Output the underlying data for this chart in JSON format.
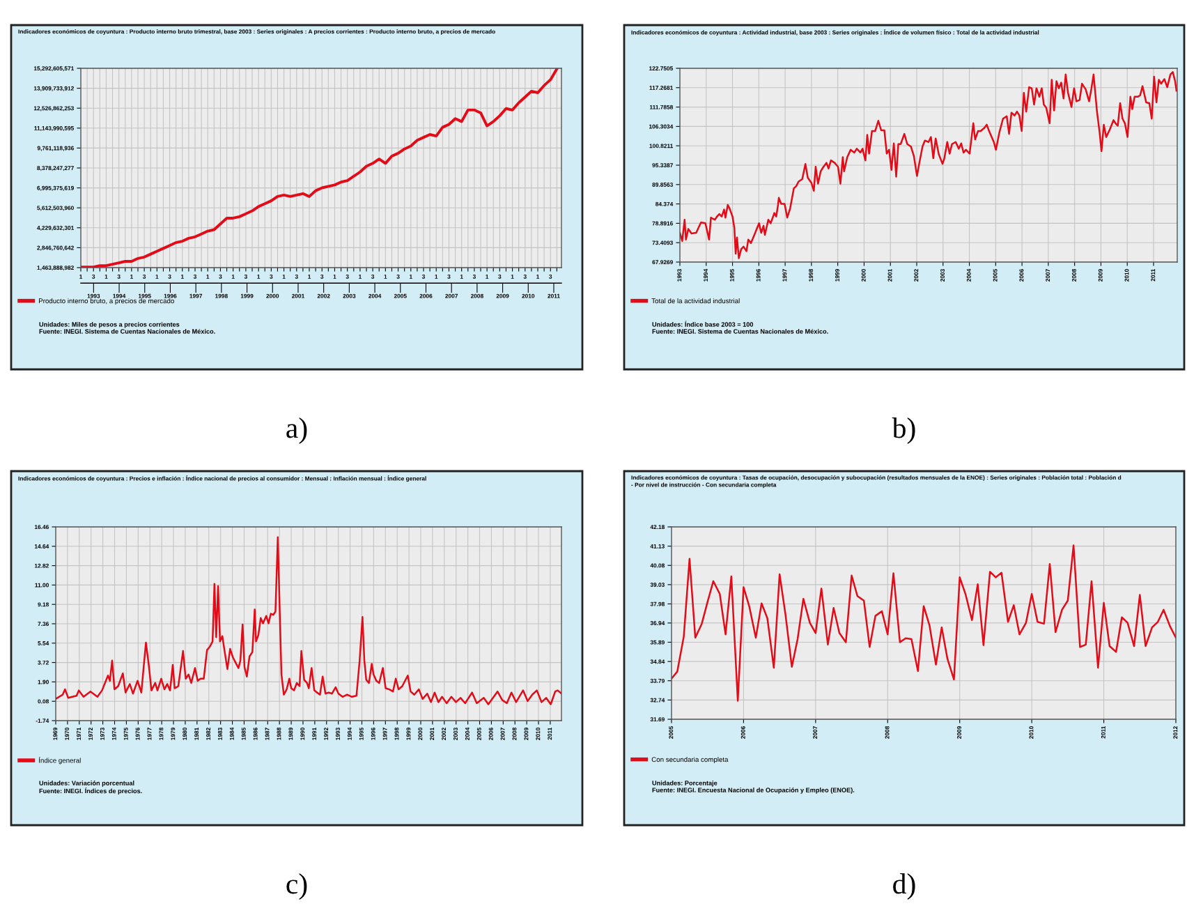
{
  "chart_data": [
    {
      "type": "line",
      "title": "Indicadores económicos de coyuntura : Producto interno bruto trimestral, base 2003 : Series originales : A precios corrientes : Producto interno bruto, a precios de mercado",
      "subtitle": "a)",
      "annotations": [
        "Unidades: Miles de pesos a precios corrientes",
        "Fuente: INEGI. Sistema de Cuentas Nacionales de México."
      ],
      "categories": [
        "1",
        null,
        "3",
        null,
        "1",
        null,
        "3",
        null,
        "1",
        null,
        "3",
        null,
        "1",
        null,
        "3",
        null,
        "1",
        null,
        "3",
        null,
        "1",
        null,
        "3",
        null,
        "1",
        null,
        "3",
        null,
        "1",
        null,
        "3",
        null,
        "1",
        null,
        "3",
        null,
        "1",
        null,
        "3",
        null,
        "1",
        null,
        "3",
        null,
        "1",
        null,
        "3",
        null,
        "1",
        null,
        "3",
        null,
        "1",
        null,
        "3",
        null,
        "1",
        null,
        "3",
        null,
        "1",
        null,
        "3",
        null,
        "1",
        null,
        "3",
        null,
        "1",
        null,
        "3",
        null,
        "1",
        null,
        "3",
        null
      ],
      "series": [
        {
          "name": "Producto interno bruto, a precios de mercado",
          "color": "#e30b17",
          "values": [
            1500000000,
            1500000000,
            1500000000,
            1600000000,
            1600000000,
            1700000000,
            1800000000,
            1900000000,
            1900000000,
            2100000000,
            2200000000,
            2400000000,
            2600000000,
            2800000000,
            3000000000,
            3200000000,
            3300000000,
            3500000000,
            3600000000,
            3800000000,
            4000000000,
            4100000000,
            4500000000,
            4900000000,
            4900000000,
            5000000000,
            5200000000,
            5400000000,
            5700000000,
            5900000000,
            6100000000,
            6400000000,
            6500000000,
            6400000000,
            6500000000,
            6600000000,
            6400000000,
            6800000000,
            7000000000,
            7100000000,
            7200000000,
            7400000000,
            7500000000,
            7800000000,
            8100000000,
            8500000000,
            8700000000,
            9000000000,
            8700000000,
            9200000000,
            9400000000,
            9700000000,
            9900000000,
            10300000000,
            10500000000,
            10700000000,
            10600000000,
            11200000000,
            11400000000,
            11800000000,
            11600000000,
            12400000000,
            12400000000,
            12200000000,
            11300000000,
            11600000000,
            12000000000,
            12500000000,
            12400000000,
            12900000000,
            13300000000,
            13700000000,
            13600000000,
            14100000000,
            14500000000,
            15250000000
          ]
        }
      ],
      "x2lim": [
        1992.5,
        2011.3
      ],
      "x2ticks": [
        1993,
        1994,
        1995,
        1996,
        1997,
        1998,
        1999,
        2000,
        2001,
        2002,
        2003,
        2004,
        2005,
        2006,
        2007,
        2008,
        2009,
        2010,
        2011
      ],
      "ylim": [
        1463888982,
        15292605571
      ],
      "yticks": [
        {
          "value": 1463888982,
          "label": "1,463,888,982"
        },
        {
          "value": 2846760642,
          "label": "2,846,760,642"
        },
        {
          "value": 4229632301,
          "label": "4,229,632,301"
        },
        {
          "value": 5612503960,
          "label": "5,612,503,960"
        },
        {
          "value": 6995375619,
          "label": "6,995,375,619"
        },
        {
          "value": 8378247277,
          "label": "8,378,247,277"
        },
        {
          "value": 9761118936,
          "label": "9,761,118,936"
        },
        {
          "value": 11143990595,
          "label": "11,143,990,595"
        },
        {
          "value": 12526862253,
          "label": "12,526,862,253"
        },
        {
          "value": 13909733912,
          "label": "13,909,733,912"
        },
        {
          "value": 15292605571,
          "label": "15,292,605,571"
        }
      ],
      "grid": true,
      "legend": "bottom"
    },
    {
      "type": "line",
      "title": "Indicadores económicos de coyuntura : Actividad industrial, base 2003 : Series originales : Índice de volumen físico : Total de la actividad industrial",
      "subtitle": "b)",
      "annotations": [
        "Unidades: Índice base 2003 = 100",
        "Fuente: INEGI. Sistema de Cuentas Nacionales de México."
      ],
      "x": [
        1993.0,
        1993.09,
        1993.18,
        1993.23,
        1993.32,
        1993.44,
        1993.62,
        1993.8,
        1993.97,
        1994.11,
        1994.18,
        1994.33,
        1994.41,
        1994.5,
        1994.59,
        1994.68,
        1994.73,
        1994.82,
        1994.89,
        1995.0,
        1995.07,
        1995.12,
        1995.17,
        1995.24,
        1995.33,
        1995.42,
        1995.53,
        1995.6,
        1995.7,
        1995.83,
        1995.92,
        1996.01,
        1996.09,
        1996.18,
        1996.23,
        1996.36,
        1996.45,
        1996.59,
        1996.66,
        1996.73,
        1996.76,
        1996.85,
        1996.98,
        1997.08,
        1997.19,
        1997.33,
        1997.42,
        1997.51,
        1997.65,
        1997.77,
        1997.86,
        1998.0,
        1998.09,
        1998.16,
        1998.25,
        1998.35,
        1998.44,
        1998.57,
        1998.65,
        1998.74,
        1998.88,
        1999.01,
        1999.1,
        1999.19,
        1999.24,
        1999.36,
        1999.49,
        1999.63,
        1999.72,
        1999.86,
        1999.94,
        2000.05,
        2000.12,
        2000.19,
        2000.3,
        2000.42,
        2000.54,
        2000.65,
        2000.77,
        2000.86,
        2000.95,
        2001.04,
        2001.13,
        2001.22,
        2001.3,
        2001.39,
        2001.53,
        2001.64,
        2001.78,
        2001.89,
        2002.01,
        2002.1,
        2002.22,
        2002.31,
        2002.45,
        2002.54,
        2002.63,
        2002.72,
        2002.84,
        2002.98,
        2003.05,
        2003.16,
        2003.25,
        2003.34,
        2003.48,
        2003.6,
        2003.69,
        2003.78,
        2003.87,
        2004.01,
        2004.08,
        2004.15,
        2004.22,
        2004.33,
        2004.43,
        2004.57,
        2004.66,
        2004.75,
        2004.93,
        2005.01,
        2005.14,
        2005.28,
        2005.42,
        2005.51,
        2005.6,
        2005.72,
        2005.81,
        2005.9,
        2005.99,
        2006.07,
        2006.16,
        2006.27,
        2006.37,
        2006.46,
        2006.55,
        2006.66,
        2006.75,
        2006.83,
        2006.92,
        2007.05,
        2007.13,
        2007.22,
        2007.31,
        2007.4,
        2007.49,
        2007.58,
        2007.66,
        2007.75,
        2007.88,
        2007.98,
        2008.07,
        2008.19,
        2008.28,
        2008.42,
        2008.55,
        2008.64,
        2008.72,
        2008.85,
        2008.95,
        2009.02,
        2009.11,
        2009.2,
        2009.34,
        2009.48,
        2009.55,
        2009.64,
        2009.73,
        2009.82,
        2009.91,
        2010.01,
        2010.12,
        2010.19,
        2010.28,
        2010.4,
        2010.49,
        2010.58,
        2010.72,
        2010.84,
        2010.93,
        2011.02,
        2011.11,
        2011.2,
        2011.29,
        2011.41,
        2011.52,
        2011.64,
        2011.73,
        2011.82,
        2011.87
      ],
      "series": [
        {
          "name": "Total de la actividad industrial",
          "color": "#e30b17",
          "values": [
            76.2,
            73.9,
            79.9,
            74.3,
            77.3,
            76.0,
            76.2,
            79.1,
            78.9,
            74.3,
            80.5,
            79.9,
            80.8,
            81.5,
            80.8,
            82.8,
            80.5,
            84.1,
            83.1,
            80.8,
            77.6,
            70.3,
            74.9,
            69.0,
            71.6,
            72.3,
            71.0,
            74.3,
            73.3,
            75.6,
            77.3,
            78.9,
            76.2,
            78.2,
            75.6,
            79.9,
            78.9,
            81.8,
            80.8,
            84.1,
            86.1,
            84.4,
            84.4,
            80.5,
            83.1,
            88.8,
            89.4,
            90.7,
            91.4,
            95.7,
            91.8,
            90.3,
            88.1,
            94.9,
            90.1,
            93.6,
            94.7,
            96.0,
            94.4,
            96.7,
            96.0,
            94.9,
            90.1,
            97.6,
            93.6,
            97.6,
            99.7,
            98.9,
            100.0,
            98.9,
            100.0,
            96.7,
            103.9,
            98.6,
            105.0,
            105.0,
            107.9,
            105.2,
            105.2,
            98.6,
            99.7,
            94.0,
            101.5,
            92.1,
            101.3,
            101.3,
            104.2,
            101.3,
            100.6,
            98.0,
            92.3,
            96.0,
            100.6,
            102.3,
            101.9,
            103.3,
            97.3,
            102.9,
            98.4,
            95.7,
            97.3,
            101.9,
            98.6,
            101.3,
            101.9,
            100.0,
            101.5,
            98.9,
            99.7,
            98.6,
            102.9,
            107.2,
            102.6,
            105.0,
            105.0,
            105.9,
            106.8,
            105.0,
            101.9,
            99.7,
            104.6,
            108.5,
            109.2,
            104.2,
            110.2,
            109.4,
            110.5,
            109.4,
            105.0,
            115.8,
            110.5,
            117.4,
            117.1,
            112.5,
            117.1,
            114.7,
            117.1,
            112.5,
            111.6,
            107.2,
            119.5,
            110.8,
            119.1,
            117.1,
            118.7,
            114.2,
            121.0,
            115.8,
            111.8,
            117.1,
            113.4,
            113.8,
            118.4,
            116.8,
            113.4,
            117.1,
            121.0,
            110.5,
            104.6,
            99.3,
            106.8,
            103.3,
            105.5,
            108.1,
            107.2,
            106.5,
            112.9,
            108.5,
            107.2,
            103.3,
            114.7,
            111.2,
            114.7,
            114.7,
            115.1,
            117.7,
            113.1,
            112.9,
            108.5,
            120.4,
            113.1,
            119.5,
            118.4,
            119.7,
            117.4,
            121.0,
            121.7,
            119.1,
            116.4
          ]
        }
      ],
      "xlim": [
        1993,
        2011.9
      ],
      "xticks": [
        1993,
        1994,
        1995,
        1996,
        1997,
        1998,
        1999,
        2000,
        2001,
        2002,
        2003,
        2004,
        2005,
        2006,
        2007,
        2008,
        2009,
        2010,
        2011
      ],
      "ylim": [
        67.9269,
        122.7505
      ],
      "yticks": [
        67.9269,
        73.4093,
        78.8916,
        84.374,
        89.8563,
        95.3387,
        100.8211,
        106.3034,
        111.7858,
        117.2681,
        122.7505
      ],
      "grid": true,
      "legend": "bottom"
    },
    {
      "type": "line",
      "title": "Indicadores económicos de coyuntura : Precios e inflación : Índice nacional de precios al consumidor : Mensual : Inflación mensual : Índice general",
      "subtitle": "c)",
      "annotations": [
        "Unidades: Variación porcentual",
        "Fuente: INEGI. Índices de precios."
      ],
      "x": [
        1969.0,
        1969.59,
        1969.79,
        1970.06,
        1970.77,
        1970.96,
        1971.36,
        1971.95,
        1972.54,
        1972.93,
        1973.44,
        1973.6,
        1973.79,
        1973.99,
        1974.3,
        1974.7,
        1974.93,
        1975.29,
        1975.56,
        1975.95,
        1976.27,
        1976.66,
        1976.9,
        1977.13,
        1977.45,
        1977.64,
        1977.96,
        1978.23,
        1978.47,
        1978.71,
        1978.94,
        1979.1,
        1979.41,
        1979.81,
        1980.04,
        1980.28,
        1980.51,
        1980.83,
        1981.06,
        1981.3,
        1981.57,
        1981.85,
        1982.08,
        1982.32,
        1982.48,
        1982.63,
        1982.79,
        1982.95,
        1983.15,
        1983.34,
        1983.58,
        1983.81,
        1984.05,
        1984.28,
        1984.52,
        1984.68,
        1984.87,
        1985.03,
        1985.23,
        1985.46,
        1985.7,
        1985.9,
        1986.01,
        1986.21,
        1986.41,
        1986.6,
        1986.88,
        1987.07,
        1987.27,
        1987.47,
        1987.66,
        1987.86,
        1988.02,
        1988.17,
        1988.37,
        1988.61,
        1988.84,
        1989.0,
        1989.24,
        1989.47,
        1989.71,
        1989.86,
        1990.1,
        1990.34,
        1990.49,
        1990.73,
        1990.96,
        1991.2,
        1991.44,
        1991.67,
        1991.91,
        1992.18,
        1992.46,
        1992.77,
        1993.01,
        1993.36,
        1993.75,
        1994.15,
        1994.54,
        1994.81,
        1995.05,
        1995.21,
        1995.37,
        1995.6,
        1995.84,
        1995.99,
        1996.23,
        1996.47,
        1996.78,
        1997.02,
        1997.33,
        1997.64,
        1997.88,
        1998.12,
        1998.43,
        1998.9,
        1999.14,
        1999.45,
        1999.84,
        2000.16,
        2000.55,
        2000.87,
        2001.18,
        2001.5,
        2001.81,
        2002.2,
        2002.6,
        2002.99,
        2003.38,
        2003.77,
        2004.36,
        2004.76,
        2005.35,
        2005.74,
        2006.52,
        2006.92,
        2007.31,
        2007.7,
        2008.1,
        2008.69,
        2009.08,
        2009.47,
        2009.86,
        2010.26,
        2010.65,
        2011.04,
        2011.42,
        2011.63,
        2011.95
      ],
      "series": [
        {
          "name": "Índice general",
          "color": "#e30b17",
          "values": [
            0.3,
            0.7,
            1.2,
            0.4,
            0.6,
            1.1,
            0.5,
            1.0,
            0.5,
            1.1,
            2.5,
            2.0,
            3.9,
            1.2,
            1.5,
            2.7,
            0.9,
            1.7,
            0.8,
            2.0,
            0.9,
            5.6,
            3.5,
            1.1,
            1.8,
            1.1,
            2.2,
            1.2,
            1.7,
            1.1,
            3.5,
            1.3,
            1.5,
            4.8,
            2.2,
            2.6,
            1.8,
            3.2,
            2.0,
            2.2,
            2.2,
            4.9,
            5.2,
            5.7,
            11.1,
            6.1,
            10.9,
            5.7,
            6.2,
            4.8,
            3.1,
            5.0,
            4.2,
            3.7,
            3.2,
            3.9,
            7.3,
            3.3,
            2.4,
            4.3,
            4.7,
            8.7,
            5.7,
            6.3,
            7.9,
            7.4,
            8.1,
            7.4,
            8.3,
            8.2,
            8.5,
            15.5,
            8.7,
            2.6,
            0.7,
            1.2,
            2.2,
            1.3,
            1.1,
            1.8,
            1.5,
            4.8,
            2.1,
            1.8,
            1.3,
            3.2,
            1.1,
            0.9,
            0.7,
            2.4,
            0.8,
            0.9,
            0.8,
            1.4,
            0.8,
            0.5,
            0.7,
            0.5,
            0.6,
            3.9,
            8.0,
            3.9,
            2.1,
            1.8,
            3.6,
            2.6,
            2.0,
            1.8,
            3.2,
            1.3,
            1.2,
            1.0,
            2.2,
            1.2,
            1.5,
            2.5,
            1.0,
            0.7,
            1.2,
            0.3,
            0.8,
            0.0,
            0.9,
            0.0,
            0.5,
            -0.1,
            0.5,
            0.0,
            0.4,
            -0.1,
            0.9,
            -0.1,
            0.4,
            -0.2,
            1.0,
            0.2,
            -0.1,
            0.9,
            0.0,
            1.1,
            0.1,
            0.7,
            1.1,
            0.0,
            0.4,
            -0.2,
            1.0,
            1.1,
            0.8
          ]
        }
      ],
      "xlim": [
        1969,
        2011.95
      ],
      "xticks": [
        1969,
        1970,
        1971,
        1972,
        1973,
        1974,
        1975,
        1976,
        1977,
        1978,
        1979,
        1980,
        1981,
        1982,
        1983,
        1984,
        1985,
        1986,
        1987,
        1988,
        1989,
        1990,
        1991,
        1992,
        1993,
        1994,
        1995,
        1996,
        1997,
        1998,
        1999,
        2000,
        2001,
        2002,
        2003,
        2004,
        2005,
        2006,
        2007,
        2008,
        2009,
        2010,
        2011
      ],
      "ylim": [
        -1.74,
        16.46
      ],
      "yticks": [
        -1.74,
        0.08,
        {
          "value": 1.9,
          "label": "1.90"
        },
        3.72,
        5.54,
        7.36,
        9.18,
        {
          "value": 11.0,
          "label": "11.00"
        },
        12.82,
        14.64,
        16.46
      ],
      "grid": true,
      "legend": "bottom"
    },
    {
      "type": "line",
      "title": "Indicadores económicos de coyuntura : Tasas de ocupación, desocupación y subocupación (resultados mensuales de la ENOE) : Series originales : Población total : Población d\n- Por nivel de instrucción - Con secundaria completa",
      "subtitle": "d)",
      "annotations": [
        "Unidades: Porcentaje",
        "Fuente: INEGI. Encuesta Nacional de Ocupación y Empleo (ENOE)."
      ],
      "x": [
        2005.0,
        2005.08,
        2005.17,
        2005.25,
        2005.33,
        2005.42,
        2005.5,
        2005.58,
        2005.67,
        2005.75,
        2005.83,
        2005.92,
        2006.0,
        2006.08,
        2006.17,
        2006.25,
        2006.33,
        2006.42,
        2006.5,
        2006.58,
        2006.67,
        2006.75,
        2006.83,
        2006.92,
        2007.0,
        2007.08,
        2007.17,
        2007.25,
        2007.33,
        2007.42,
        2007.5,
        2007.58,
        2007.67,
        2007.75,
        2007.83,
        2007.92,
        2008.0,
        2008.08,
        2008.17,
        2008.25,
        2008.33,
        2008.42,
        2008.5,
        2008.58,
        2008.67,
        2008.75,
        2008.83,
        2008.92,
        2009.0,
        2009.08,
        2009.17,
        2009.25,
        2009.33,
        2009.42,
        2009.5,
        2009.58,
        2009.67,
        2009.75,
        2009.83,
        2009.92,
        2010.0,
        2010.08,
        2010.17,
        2010.25,
        2010.33,
        2010.42,
        2010.5,
        2010.58,
        2010.67,
        2010.75,
        2010.83,
        2010.92,
        2011.0,
        2011.08,
        2011.17,
        2011.25,
        2011.33,
        2011.42,
        2011.5,
        2011.58,
        2011.67,
        2011.75,
        2011.83,
        2011.92,
        2012.0
      ],
      "series": [
        {
          "name": "Con secundaria completa",
          "color": "#e30b17",
          "values": [
            33.91,
            34.29,
            36.19,
            40.44,
            36.14,
            36.9,
            38.09,
            39.22,
            38.52,
            36.32,
            39.48,
            32.7,
            38.89,
            37.83,
            36.14,
            38.01,
            37.2,
            34.5,
            39.6,
            37.45,
            34.55,
            36.06,
            38.26,
            36.95,
            36.39,
            38.82,
            35.76,
            37.76,
            36.39,
            35.89,
            39.53,
            38.41,
            38.16,
            35.63,
            37.33,
            37.58,
            36.32,
            39.65,
            35.89,
            36.11,
            36.06,
            34.32,
            37.86,
            36.82,
            34.67,
            36.7,
            34.98,
            33.86,
            39.43,
            38.52,
            37.1,
            39.05,
            35.73,
            39.73,
            39.43,
            39.68,
            37.0,
            37.91,
            36.32,
            36.95,
            38.52,
            37.0,
            36.9,
            40.16,
            36.44,
            37.66,
            38.16,
            41.17,
            35.63,
            35.76,
            39.22,
            34.5,
            38.04,
            35.68,
            35.36,
            37.25,
            36.95,
            35.68,
            38.47,
            35.68,
            36.7,
            37.0,
            37.66,
            36.75,
            36.14
          ]
        }
      ],
      "xlim": [
        2005,
        2012
      ],
      "xticks": [
        2005,
        2006,
        2007,
        2008,
        2009,
        2010,
        2011,
        2012
      ],
      "ylim": [
        31.69,
        42.18
      ],
      "yticks": [
        31.69,
        32.74,
        33.79,
        34.84,
        35.89,
        36.94,
        37.98,
        39.03,
        40.08,
        41.13,
        42.18
      ],
      "grid": true,
      "legend": "bottom"
    }
  ]
}
